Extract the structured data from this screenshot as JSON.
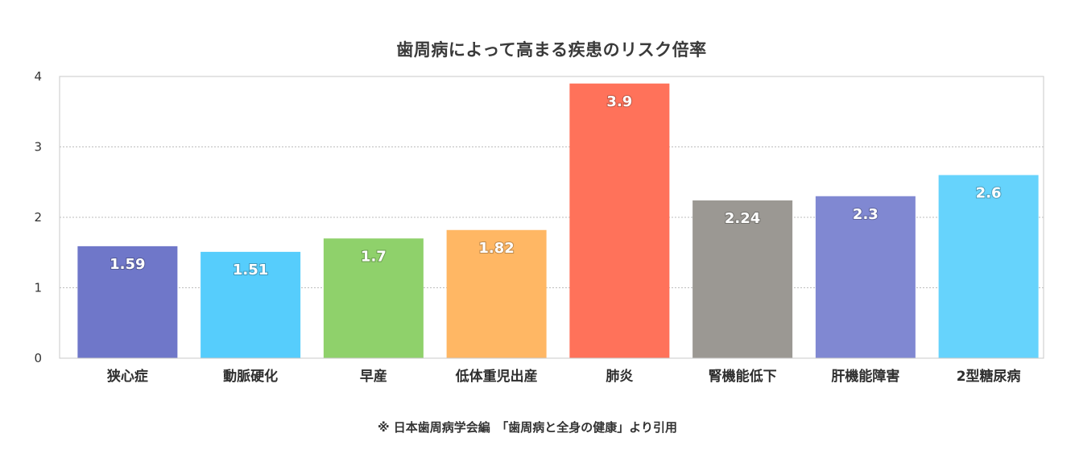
{
  "chart_data": {
    "type": "bar",
    "title": "歯周病によって高まる疾患のリスク倍率",
    "categories": [
      "狭心症",
      "動脈硬化",
      "早産",
      "低体重児出産",
      "肺炎",
      "腎機能低下",
      "肝機能障害",
      "2型糖尿病"
    ],
    "values": [
      1.59,
      1.51,
      1.7,
      1.82,
      3.9,
      2.24,
      2.3,
      2.6
    ],
    "value_labels": [
      "1.59",
      "1.51",
      "1.7",
      "1.82",
      "3.9",
      "2.24",
      "2.3",
      "2.6"
    ],
    "colors": [
      "#6f77c9",
      "#56cdfc",
      "#8fd16b",
      "#ffb764",
      "#ff725a",
      "#9b9893",
      "#8088d2",
      "#66d3fc"
    ],
    "yticks": [
      0,
      1,
      2,
      3,
      4
    ],
    "ylim": [
      0,
      4
    ],
    "grid": true,
    "legend": false,
    "xlabel": "",
    "ylabel": ""
  },
  "footer": {
    "note": "※ 日本歯周病学会編　「歯周病と全身の健康」より引用"
  }
}
